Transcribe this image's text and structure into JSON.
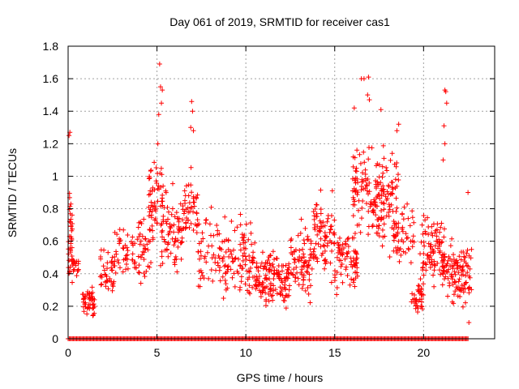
{
  "chart_data": {
    "type": "scatter",
    "title": "Day 061 of 2019, SRMTID for receiver cas1",
    "xlabel": "GPS time / hours",
    "ylabel": "SRMTID / TECUs",
    "xlim": [
      0,
      24
    ],
    "ylim": [
      0,
      1.8
    ],
    "xticks": [
      0,
      5,
      10,
      15,
      20
    ],
    "xtick_labels": [
      "0",
      "5",
      "10",
      "15",
      "20"
    ],
    "yticks": [
      0,
      0.2,
      0.4,
      0.6,
      0.8,
      1.0,
      1.2,
      1.4,
      1.6,
      1.8
    ],
    "ytick_labels": [
      "0",
      "0.2",
      "0.4",
      "0.6",
      "0.8",
      "1",
      "1.2",
      "1.4",
      "1.6",
      "1.8"
    ],
    "grid": true,
    "marker": "plus",
    "series": [
      {
        "name": "SRMTID",
        "color": "#ff0000",
        "clusters": [
          {
            "x": [
              0.0,
              0.25
            ],
            "y": [
              0.25,
              1.1
            ],
            "n": 35
          },
          {
            "x": [
              0.2,
              0.6
            ],
            "y": [
              0.35,
              0.55
            ],
            "n": 20
          },
          {
            "x": [
              0.8,
              1.5
            ],
            "y": [
              0.08,
              0.35
            ],
            "n": 45
          },
          {
            "x": [
              1.8,
              2.6
            ],
            "y": [
              0.18,
              0.6
            ],
            "n": 40
          },
          {
            "x": [
              2.6,
              3.8
            ],
            "y": [
              0.28,
              0.75
            ],
            "n": 45
          },
          {
            "x": [
              3.8,
              4.8
            ],
            "y": [
              0.2,
              0.9
            ],
            "n": 45
          },
          {
            "x": [
              4.5,
              5.4
            ],
            "y": [
              0.55,
              1.2
            ],
            "n": 50
          },
          {
            "x": [
              5.2,
              6.5
            ],
            "y": [
              0.3,
              1.0
            ],
            "n": 80
          },
          {
            "x": [
              6.5,
              7.3
            ],
            "y": [
              0.5,
              1.1
            ],
            "n": 45
          },
          {
            "x": [
              7.3,
              8.5
            ],
            "y": [
              0.2,
              0.9
            ],
            "n": 45
          },
          {
            "x": [
              8.5,
              10.5
            ],
            "y": [
              0.15,
              0.85
            ],
            "n": 110
          },
          {
            "x": [
              10.5,
              12.5
            ],
            "y": [
              0.12,
              0.6
            ],
            "n": 140
          },
          {
            "x": [
              12.5,
              13.8
            ],
            "y": [
              0.15,
              0.8
            ],
            "n": 80
          },
          {
            "x": [
              13.8,
              15.0
            ],
            "y": [
              0.3,
              1.0
            ],
            "n": 80
          },
          {
            "x": [
              15.0,
              16.3
            ],
            "y": [
              0.2,
              0.75
            ],
            "n": 80
          },
          {
            "x": [
              16.0,
              17.5
            ],
            "y": [
              0.55,
              1.25
            ],
            "n": 90
          },
          {
            "x": [
              17.3,
              18.6
            ],
            "y": [
              0.45,
              1.3
            ],
            "n": 90
          },
          {
            "x": [
              18.3,
              19.5
            ],
            "y": [
              0.4,
              0.9
            ],
            "n": 50
          },
          {
            "x": [
              19.3,
              20.0
            ],
            "y": [
              0.12,
              0.4
            ],
            "n": 35
          },
          {
            "x": [
              19.8,
              21.2
            ],
            "y": [
              0.25,
              0.85
            ],
            "n": 90
          },
          {
            "x": [
              21.0,
              22.7
            ],
            "y": [
              0.12,
              0.65
            ],
            "n": 110
          }
        ],
        "zero_rows": [
          [
            0.0,
            22.5
          ]
        ],
        "peaks": [
          {
            "x": 0.1,
            "y": 1.27
          },
          {
            "x": 0.05,
            "y": 1.25
          },
          {
            "x": 5.15,
            "y": 1.69
          },
          {
            "x": 5.2,
            "y": 1.55
          },
          {
            "x": 5.3,
            "y": 1.53
          },
          {
            "x": 5.25,
            "y": 1.45
          },
          {
            "x": 5.1,
            "y": 1.38
          },
          {
            "x": 5.05,
            "y": 1.2
          },
          {
            "x": 6.95,
            "y": 1.46
          },
          {
            "x": 7.0,
            "y": 1.4
          },
          {
            "x": 6.9,
            "y": 1.3
          },
          {
            "x": 7.05,
            "y": 1.28
          },
          {
            "x": 16.5,
            "y": 1.6
          },
          {
            "x": 16.65,
            "y": 1.6
          },
          {
            "x": 16.9,
            "y": 1.61
          },
          {
            "x": 16.85,
            "y": 1.5
          },
          {
            "x": 16.95,
            "y": 1.47
          },
          {
            "x": 16.1,
            "y": 1.42
          },
          {
            "x": 17.6,
            "y": 1.41
          },
          {
            "x": 18.6,
            "y": 1.32
          },
          {
            "x": 18.5,
            "y": 1.28
          },
          {
            "x": 21.2,
            "y": 1.53
          },
          {
            "x": 21.25,
            "y": 1.52
          },
          {
            "x": 21.3,
            "y": 1.45
          },
          {
            "x": 21.15,
            "y": 1.31
          },
          {
            "x": 21.2,
            "y": 1.2
          },
          {
            "x": 21.1,
            "y": 1.1
          },
          {
            "x": 22.5,
            "y": 0.9
          },
          {
            "x": 22.55,
            "y": 0.1
          }
        ]
      }
    ]
  }
}
